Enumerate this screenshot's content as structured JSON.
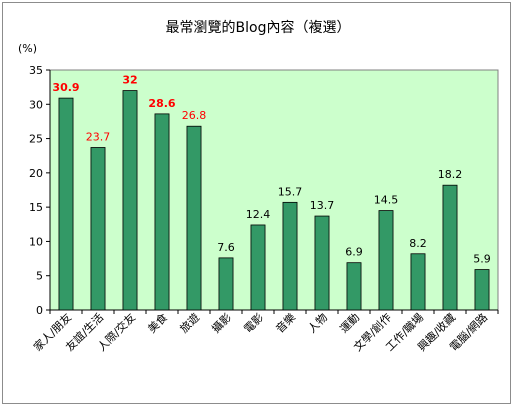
{
  "chart_data": {
    "type": "bar",
    "title": "最常瀏覽的Blog內容（複選）",
    "y_unit": "(%)",
    "ylim": [
      0,
      35
    ],
    "yticks": [
      0,
      5,
      10,
      15,
      20,
      25,
      30,
      35
    ],
    "grid": false,
    "plot_background": "#ccffcc",
    "bar_color": "#339966",
    "categories": [
      "家人/朋友",
      "友誼/生活",
      "人際/交友",
      "美食",
      "旅遊",
      "攝影",
      "電影",
      "音樂",
      "人物",
      "運動",
      "文學/創作",
      "工作/職場",
      "興趣/收藏",
      "電腦/網路"
    ],
    "values": [
      30.9,
      23.7,
      32,
      28.6,
      26.8,
      7.6,
      12.4,
      15.7,
      13.7,
      6.9,
      14.5,
      8.2,
      18.2,
      5.9
    ],
    "value_labels": [
      "30.9",
      "23.7",
      "32",
      "28.6",
      "26.8",
      "7.6",
      "12.4",
      "15.7",
      "13.7",
      "6.9",
      "14.5",
      "8.2",
      "18.2",
      "5.9"
    ],
    "label_colors": [
      "#ff0000",
      "#ff0000",
      "#ff0000",
      "#ff0000",
      "#ff0000",
      "#000000",
      "#000000",
      "#000000",
      "#000000",
      "#000000",
      "#000000",
      "#000000",
      "#000000",
      "#000000"
    ],
    "label_bold": [
      true,
      false,
      true,
      true,
      false,
      false,
      false,
      false,
      false,
      false,
      false,
      false,
      false,
      false
    ]
  }
}
